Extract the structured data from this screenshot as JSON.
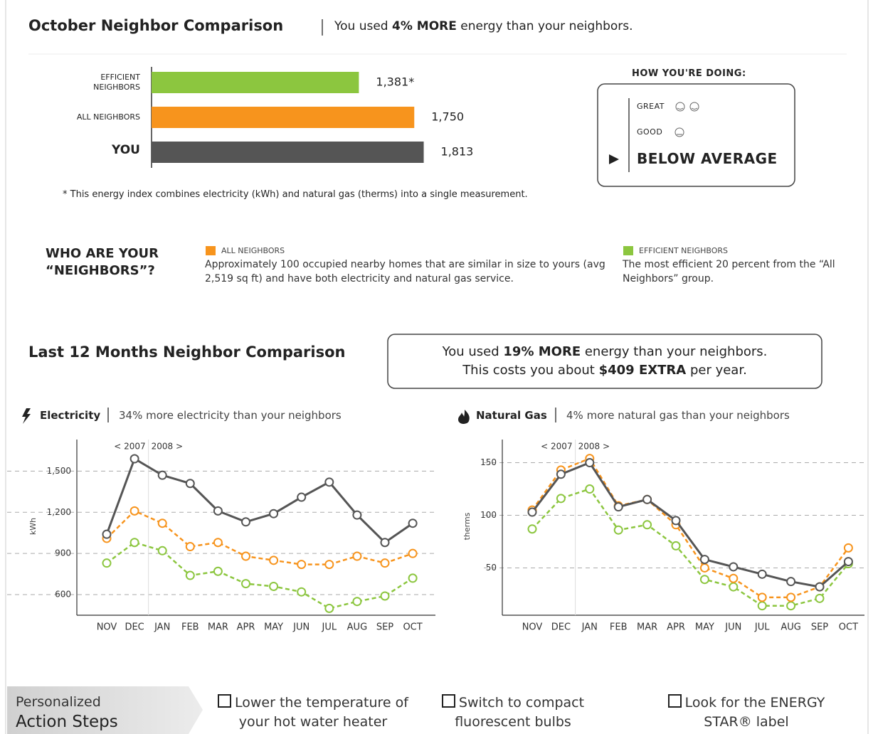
{
  "header": {
    "title": "October Neighbor Comparison",
    "summary_pre": "You used",
    "summary_bold": "4% MORE",
    "summary_post": "energy than your neighbors."
  },
  "footnote": "* This energy index combines electricity (kWh) and natural gas (therms) into a single measurement.",
  "rating": {
    "title": "HOW YOU'RE DOING:",
    "levels": [
      "GREAT",
      "GOOD",
      "BELOW AVERAGE"
    ],
    "current": 2
  },
  "neighbors": {
    "title": "WHO ARE YOUR “NEIGHBORS”?",
    "groups": [
      {
        "name": "ALL NEIGHBORS",
        "color": "#f7941d",
        "text": "Approximately 100 occupied nearby homes that are similar in size to yours (avg 2,519 sq ft) and have both electricity and natural gas service."
      },
      {
        "name": "EFFICIENT NEIGHBORS",
        "color": "#8cc63f",
        "text": "The most efficient 20 percent from the “All Neighbors” group."
      }
    ]
  },
  "annual": {
    "title": "Last 12 Months Neighbor Comparison",
    "line1_pre": "You used",
    "line1_bold": "19% MORE",
    "line1_post": "energy than your neighbors.",
    "line2_pre": "This costs you about",
    "line2_bold": "$409 EXTRA",
    "line2_post": "per year."
  },
  "chart_data": [
    {
      "type": "bar",
      "orientation": "horizontal",
      "categories": [
        "EFFICIENT NEIGHBORS",
        "ALL NEIGHBORS",
        "YOU"
      ],
      "values": [
        1381,
        1750,
        1813
      ],
      "value_labels": [
        "1,381*",
        "1,750",
        "1,813"
      ],
      "colors": [
        "#8cc63f",
        "#f7941d",
        "#555555"
      ]
    },
    {
      "type": "line",
      "title": "Electricity",
      "subtitle": "34% more electricity than your neighbors",
      "y_label": "kWh",
      "annotations": [
        "< 2007",
        "2008 >"
      ],
      "categories": [
        "NOV",
        "DEC",
        "JAN",
        "FEB",
        "MAR",
        "APR",
        "MAY",
        "JUN",
        "JUL",
        "AUG",
        "SEP",
        "OCT"
      ],
      "ylim": [
        450,
        1730
      ],
      "yticks": [
        600,
        900,
        {
          "value": 1200,
          "label": "1,200"
        },
        {
          "value": 1500,
          "label": "1,500"
        }
      ],
      "grid": true,
      "series": [
        {
          "color": "#8cc63f",
          "dashed": true,
          "values": [
            830,
            980,
            920,
            740,
            770,
            680,
            660,
            620,
            500,
            550,
            590,
            720
          ]
        },
        {
          "color": "#f7941d",
          "dashed": true,
          "values": [
            1010,
            1210,
            1120,
            950,
            980,
            880,
            850,
            820,
            820,
            880,
            830,
            900
          ]
        },
        {
          "color": "#555555",
          "dashed": false,
          "values": [
            1040,
            1590,
            1470,
            1410,
            1210,
            1130,
            1190,
            1310,
            1420,
            1180,
            980,
            1120
          ]
        }
      ]
    },
    {
      "type": "line",
      "title": "Natural Gas",
      "subtitle": "4% more natural gas than your neighbors",
      "y_label": "therms",
      "annotations": [
        "< 2007",
        "2008 >"
      ],
      "categories": [
        "NOV",
        "DEC",
        "JAN",
        "FEB",
        "MAR",
        "APR",
        "MAY",
        "JUN",
        "JUL",
        "AUG",
        "SEP",
        "OCT"
      ],
      "ylim": [
        5,
        172
      ],
      "yticks": [
        50,
        100,
        150
      ],
      "grid": true,
      "series": [
        {
          "color": "#8cc63f",
          "dashed": true,
          "values": [
            87,
            116,
            125,
            86,
            91,
            71,
            39,
            32,
            14,
            14,
            21,
            54
          ]
        },
        {
          "color": "#f7941d",
          "dashed": true,
          "values": [
            105,
            143,
            154,
            109,
            115,
            91,
            50,
            40,
            22,
            22,
            32,
            69
          ]
        },
        {
          "color": "#555555",
          "dashed": false,
          "values": [
            103,
            139,
            150,
            108,
            115,
            95,
            58,
            51,
            44,
            37,
            32,
            56
          ]
        }
      ]
    }
  ],
  "actions": {
    "title": [
      "Personalized",
      "Action Steps"
    ],
    "items": [
      "Lower the temperature of your hot water heater",
      "Switch to compact fluorescent bulbs",
      "Look for the ENERGY STAR® label"
    ]
  }
}
